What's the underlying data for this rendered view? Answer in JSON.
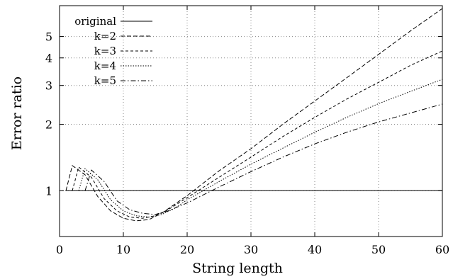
{
  "chart_data": {
    "type": "line",
    "title": "",
    "xlabel": "String length",
    "ylabel": "Error ratio",
    "xlim": [
      0,
      60
    ],
    "ylim": [
      0.62,
      6.9
    ],
    "y_scale": "log",
    "grid": true,
    "legend_position": "top-left",
    "x_ticks": [
      0,
      10,
      20,
      30,
      40,
      50,
      60
    ],
    "y_ticks": [
      1,
      2,
      3,
      4,
      5
    ],
    "series": [
      {
        "name": "original",
        "dash": "solid",
        "points": [
          [
            1,
            1
          ],
          [
            60,
            1
          ]
        ]
      },
      {
        "name": "k=2",
        "dash": "long-dash",
        "points": [
          [
            1,
            1.0
          ],
          [
            2,
            1.3
          ],
          [
            4,
            1.18
          ],
          [
            6,
            0.94
          ],
          [
            8,
            0.81
          ],
          [
            10,
            0.75
          ],
          [
            12,
            0.73
          ],
          [
            14,
            0.74
          ],
          [
            16,
            0.79
          ],
          [
            20,
            0.95
          ],
          [
            25,
            1.23
          ],
          [
            30,
            1.55
          ],
          [
            35,
            2.0
          ],
          [
            40,
            2.55
          ],
          [
            45,
            3.25
          ],
          [
            50,
            4.15
          ],
          [
            55,
            5.3
          ],
          [
            60,
            6.7
          ]
        ]
      },
      {
        "name": "k=3",
        "dash": "dash",
        "points": [
          [
            2,
            1.0
          ],
          [
            3,
            1.28
          ],
          [
            5,
            1.15
          ],
          [
            7,
            0.92
          ],
          [
            9,
            0.81
          ],
          [
            11,
            0.76
          ],
          [
            13,
            0.75
          ],
          [
            15,
            0.77
          ],
          [
            17,
            0.82
          ],
          [
            20,
            0.93
          ],
          [
            25,
            1.15
          ],
          [
            30,
            1.42
          ],
          [
            35,
            1.76
          ],
          [
            40,
            2.15
          ],
          [
            45,
            2.6
          ],
          [
            50,
            3.1
          ],
          [
            55,
            3.7
          ],
          [
            60,
            4.3
          ]
        ]
      },
      {
        "name": "k=4",
        "dash": "dot",
        "points": [
          [
            3,
            1.0
          ],
          [
            4,
            1.26
          ],
          [
            6,
            1.12
          ],
          [
            8,
            0.91
          ],
          [
            10,
            0.81
          ],
          [
            12,
            0.77
          ],
          [
            14,
            0.76
          ],
          [
            16,
            0.78
          ],
          [
            18,
            0.83
          ],
          [
            20,
            0.91
          ],
          [
            25,
            1.1
          ],
          [
            30,
            1.32
          ],
          [
            35,
            1.56
          ],
          [
            40,
            1.84
          ],
          [
            45,
            2.15
          ],
          [
            50,
            2.48
          ],
          [
            55,
            2.82
          ],
          [
            60,
            3.2
          ]
        ]
      },
      {
        "name": "k=5",
        "dash": "dash-dot",
        "points": [
          [
            4,
            1.0
          ],
          [
            5,
            1.24
          ],
          [
            7,
            1.1
          ],
          [
            9,
            0.9
          ],
          [
            11,
            0.82
          ],
          [
            13,
            0.79
          ],
          [
            15,
            0.78
          ],
          [
            17,
            0.81
          ],
          [
            20,
            0.88
          ],
          [
            25,
            1.04
          ],
          [
            30,
            1.22
          ],
          [
            35,
            1.42
          ],
          [
            40,
            1.63
          ],
          [
            45,
            1.84
          ],
          [
            50,
            2.05
          ],
          [
            55,
            2.25
          ],
          [
            60,
            2.47
          ]
        ]
      }
    ]
  }
}
